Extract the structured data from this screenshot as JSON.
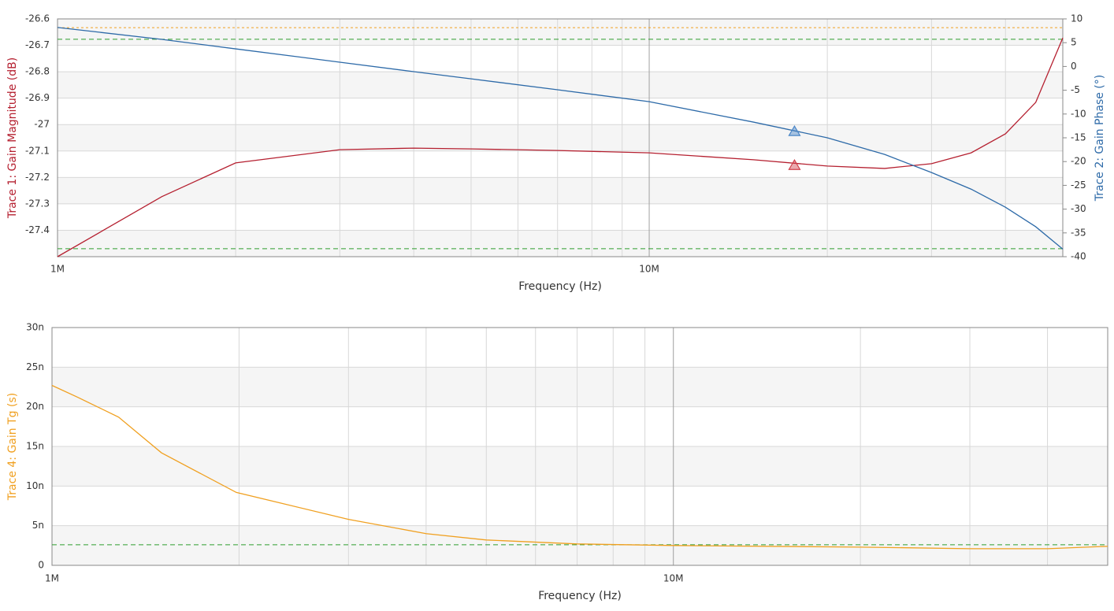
{
  "chart_data": [
    {
      "type": "line",
      "x_label": "Frequency (Hz)",
      "y_label": "Trace 1: Gain Magnitude (dB)",
      "y2_label": "Trace 2: Gain Phase (°)",
      "xscale": "log",
      "xlim": [
        1000000,
        50000000
      ],
      "xticks": [
        {
          "value": 1000000,
          "label": "1M"
        },
        {
          "value": 10000000,
          "label": "10M"
        }
      ],
      "xgrid": [
        2000000,
        3000000,
        4000000,
        5000000,
        6000000,
        7000000,
        8000000,
        9000000,
        20000000,
        30000000,
        40000000
      ],
      "ylim": [
        -27.5,
        -26.6
      ],
      "yticks": [
        -26.6,
        -26.7,
        -26.8,
        -26.9,
        -27,
        -27.1,
        -27.2,
        -27.3,
        -27.4
      ],
      "y2lim": [
        -40,
        10
      ],
      "y2ticks": [
        10,
        5,
        0,
        -5,
        -10,
        -15,
        -20,
        -25,
        -30,
        -35,
        -40
      ],
      "grid": true,
      "x": [
        1000000,
        1500000,
        2000000,
        3000000,
        4000000,
        5000000,
        7000000,
        10000000,
        15000000,
        20000000,
        25000000,
        30000000,
        35000000,
        40000000,
        45000000,
        50000000
      ],
      "series": [
        {
          "color": "#b52030",
          "axis": "y",
          "values": [
            -27.5,
            -27.273,
            -27.145,
            -27.095,
            -27.089,
            -27.092,
            -27.098,
            -27.107,
            -27.133,
            -27.157,
            -27.166,
            -27.148,
            -27.107,
            -27.035,
            -26.916,
            -26.672
          ]
        },
        {
          "color": "#2d6aa8",
          "axis": "y2",
          "values": [
            8.2,
            5.7,
            3.7,
            0.9,
            -1.1,
            -2.6,
            -4.9,
            -7.4,
            -11.7,
            -15.0,
            -18.5,
            -22.3,
            -25.8,
            -29.6,
            -33.7,
            -38.4
          ]
        }
      ],
      "markers": [
        {
          "x": 17600000,
          "y": -27.155,
          "axis": "y",
          "color": "#d0404c"
        },
        {
          "x": 17600000,
          "y": -13.7,
          "axis": "y2",
          "color": "#4a86c8"
        }
      ],
      "reference_lines": [
        {
          "value": -26.633,
          "axis": "y",
          "color": "#f0a020",
          "dash": "3 3"
        },
        {
          "value": -26.677,
          "axis": "y",
          "color": "#2e9e2e",
          "dash": "6 4"
        },
        {
          "value": -27.47,
          "axis": "y",
          "color": "#2e9e2e",
          "dash": "6 4"
        }
      ]
    },
    {
      "type": "line",
      "x_label": "Frequency (Hz)",
      "y_label": "Trace 4: Gain Tg (s)",
      "xscale": "log",
      "xlim": [
        1000000,
        50000000
      ],
      "xticks": [
        {
          "value": 1000000,
          "label": "1M"
        },
        {
          "value": 10000000,
          "label": "10M"
        }
      ],
      "xgrid": [
        2000000,
        3000000,
        4000000,
        5000000,
        6000000,
        7000000,
        8000000,
        9000000,
        20000000,
        30000000,
        40000000
      ],
      "ylim": [
        0,
        3e-08
      ],
      "yticks": [
        0,
        {
          "value": 5e-09,
          "label": "5n"
        },
        {
          "value": 1e-08,
          "label": "10n"
        },
        {
          "value": 1.5e-08,
          "label": "15n"
        },
        {
          "value": 2e-08,
          "label": "20n"
        },
        {
          "value": 2.5e-08,
          "label": "25n"
        },
        {
          "value": 3e-08,
          "label": "30n"
        }
      ],
      "grid": true,
      "x": [
        1000000,
        1100000,
        1280000,
        1500000,
        1980000,
        3000000,
        4000000,
        5000000,
        7000000,
        10000000,
        20000000,
        30000000,
        40000000,
        50000000
      ],
      "series": [
        {
          "color": "#f0a020",
          "axis": "y",
          "values": [
            2.27e-08,
            2.12e-08,
            1.87e-08,
            1.42e-08,
            9.2e-09,
            5.8e-09,
            4e-09,
            3.2e-09,
            2.7e-09,
            2.5e-09,
            2.3e-09,
            2.1e-09,
            2.1e-09,
            2.4e-09
          ]
        }
      ],
      "reference_lines": [
        {
          "value": 2.6e-09,
          "axis": "y",
          "color": "#2e9e2e",
          "dash": "6 4"
        }
      ]
    }
  ]
}
